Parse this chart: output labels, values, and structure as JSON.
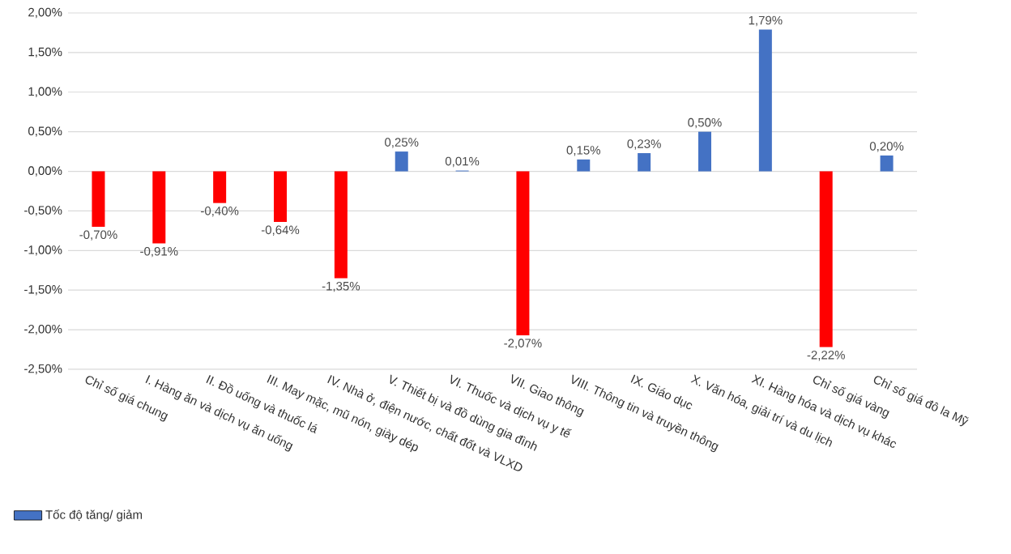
{
  "chart_data": {
    "type": "bar",
    "categories": [
      "Chỉ số giá chung",
      "I. Hàng ăn và dịch vụ ăn uống",
      "II. Đồ uống và thuốc lá",
      "III. May mặc, mũ nón, giày dép",
      "IV. Nhà ở, điện nước, chất đốt và VLXD",
      "V. Thiết bị và đồ dùng gia đình",
      "VI. Thuốc và dịch vụ y tế",
      "VII. Giao thông",
      "VIII. Thông tin và truyền thông",
      "IX. Giáo dục",
      "X. Văn hóa, giải trí và du lịch",
      "XI. Hàng hóa và dịch vụ khác",
      "Chỉ số giá vàng",
      "Chỉ số giá đô la Mỹ"
    ],
    "series": [
      {
        "name": "Tốc độ tăng/ giảm",
        "color": "#4472c4",
        "colors": [
          "#ff0000",
          "#ff0000",
          "#ff0000",
          "#ff0000",
          "#ff0000",
          "#4472c4",
          "#4472c4",
          "#ff0000",
          "#4472c4",
          "#4472c4",
          "#4472c4",
          "#4472c4",
          "#ff0000",
          "#4472c4"
        ],
        "values": [
          -0.7,
          -0.91,
          -0.4,
          -0.64,
          -1.35,
          0.25,
          0.01,
          -2.07,
          0.15,
          0.23,
          0.5,
          1.79,
          -2.22,
          0.2
        ],
        "value_labels": [
          "-0,70%",
          "-0,91%",
          "-0,40%",
          "-0,64%",
          "-1,35%",
          "0,25%",
          "0,01%",
          "-2,07%",
          "0,15%",
          "0,23%",
          "0,50%",
          "1,79%",
          "-2,22%",
          "0,20%"
        ]
      }
    ],
    "ylim": [
      -2.5,
      2.0
    ],
    "yticks": [
      {
        "value": -2.5,
        "label": "-2,50%"
      },
      {
        "value": -2.0,
        "label": "-2,00%"
      },
      {
        "value": -1.5,
        "label": "-1,50%"
      },
      {
        "value": -1.0,
        "label": "-1,00%"
      },
      {
        "value": -0.5,
        "label": "-0,50%"
      },
      {
        "value": 0,
        "label": "0,00%"
      },
      {
        "value": 0.5,
        "label": "0,50%"
      },
      {
        "value": 1.0,
        "label": "1,00%"
      },
      {
        "value": 1.5,
        "label": "1,50%"
      },
      {
        "value": 2.0,
        "label": "2,00%"
      }
    ],
    "grid": "y",
    "legend": "bottom left"
  }
}
